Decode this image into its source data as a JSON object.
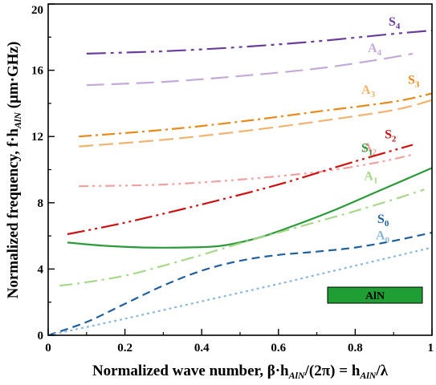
{
  "chart_data": {
    "type": "line",
    "xlabel": {
      "main": "Normalized wave number, β·h",
      "sub1": "AlN",
      "mid": "/(2π) = h",
      "sub2": "AlN",
      "end": "/λ"
    },
    "ylabel": {
      "main": "Normalized frequency, f·h",
      "sub": "AlN",
      "end": " (μm·GHz)"
    },
    "xlim": [
      0,
      1
    ],
    "ylim": [
      0,
      20
    ],
    "x_ticks": [
      "0",
      "0.2",
      "0.4",
      "0.6",
      "0.8",
      "1"
    ],
    "y_ticks": [
      "0",
      "4",
      "8",
      "12",
      "16",
      "20"
    ],
    "grid": false,
    "legend_box": {
      "label": "AlN",
      "color": "#1f9e34"
    },
    "series": [
      {
        "label": "S",
        "sub": "4",
        "color": "#6a3d9a",
        "dash": "24,6,4,6,4,6",
        "x": [
          0.1,
          0.3,
          0.5,
          0.7,
          0.9,
          1.0
        ],
        "y": [
          17.0,
          17.15,
          17.4,
          17.75,
          18.2,
          18.4
        ]
      },
      {
        "label": "A",
        "sub": "4",
        "color": "#c4aad8",
        "dash": "22,9",
        "x": [
          0.1,
          0.3,
          0.5,
          0.7,
          0.85,
          0.95
        ],
        "y": [
          15.1,
          15.3,
          15.65,
          16.1,
          16.6,
          17.0
        ]
      },
      {
        "label": "A",
        "sub": "3",
        "color": "#f2b36f",
        "dash": "18,7",
        "x": [
          0.08,
          0.3,
          0.5,
          0.7,
          0.9,
          1.0
        ],
        "y": [
          11.4,
          11.8,
          12.3,
          12.9,
          13.6,
          14.2
        ]
      },
      {
        "label": "S",
        "sub": "3",
        "color": "#e88a1a",
        "dash": "16,5,3,5",
        "x": [
          0.08,
          0.3,
          0.5,
          0.7,
          0.9,
          1.0
        ],
        "y": [
          12.0,
          12.4,
          12.9,
          13.5,
          14.1,
          14.6
        ]
      },
      {
        "label": "A",
        "sub": "2",
        "color": "#f0a0a0",
        "dash": "12,5,3,5,3,5",
        "x": [
          0.08,
          0.3,
          0.5,
          0.7,
          0.85,
          0.95
        ],
        "y": [
          9.0,
          9.1,
          9.4,
          9.85,
          10.4,
          10.9
        ]
      },
      {
        "label": "S",
        "sub": "2",
        "color": "#cc1111",
        "dash": "22,5,3,5,3,5",
        "x": [
          0.05,
          0.2,
          0.4,
          0.6,
          0.8,
          0.95
        ],
        "y": [
          6.1,
          6.8,
          7.9,
          9.1,
          10.5,
          11.5
        ]
      },
      {
        "label": "S",
        "sub": "1",
        "color": "#2a9a3a",
        "dash": "",
        "x": [
          0.05,
          0.15,
          0.25,
          0.35,
          0.45,
          0.55,
          0.65,
          0.75,
          0.85,
          0.95,
          1.0
        ],
        "y": [
          5.6,
          5.4,
          5.3,
          5.3,
          5.4,
          5.9,
          6.7,
          7.6,
          8.6,
          9.6,
          10.1
        ]
      },
      {
        "label": "A",
        "sub": "1",
        "color": "#a8d88a",
        "dash": "16,6,3,6",
        "x": [
          0.03,
          0.1,
          0.2,
          0.3,
          0.4,
          0.5,
          0.6,
          0.7,
          0.8,
          0.9,
          0.98
        ],
        "y": [
          3.0,
          3.2,
          3.6,
          4.2,
          4.85,
          5.55,
          6.2,
          6.85,
          7.5,
          8.2,
          8.8
        ]
      },
      {
        "label": "S",
        "sub": "0",
        "color": "#1f5f9e",
        "dash": "10,6",
        "x": [
          0.0,
          0.1,
          0.2,
          0.3,
          0.4,
          0.5,
          0.6,
          0.7,
          0.8,
          0.9,
          1.0
        ],
        "y": [
          0.0,
          0.8,
          1.9,
          3.0,
          3.9,
          4.5,
          4.85,
          5.05,
          5.3,
          5.7,
          6.2
        ]
      },
      {
        "label": "A",
        "sub": "0",
        "color": "#8fb8d8",
        "dash": "3,4",
        "x": [
          0.0,
          0.2,
          0.4,
          0.6,
          0.8,
          1.0
        ],
        "y": [
          0.0,
          1.0,
          2.05,
          3.1,
          4.2,
          5.3
        ]
      }
    ]
  }
}
